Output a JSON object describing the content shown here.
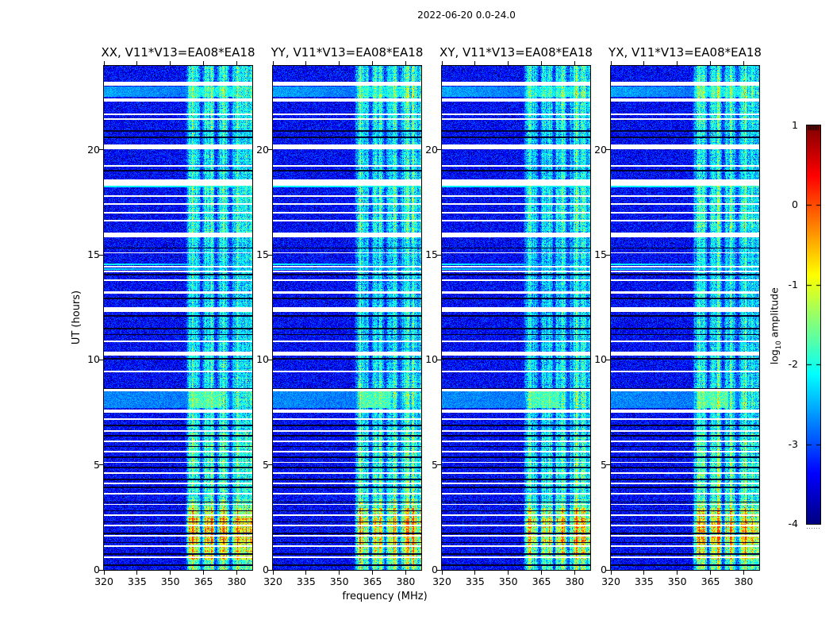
{
  "title": "2022-06-20 0.0-24.0",
  "chart_data": {
    "type": "heatmap",
    "description": "Four dynamic-spectrum (frequency vs time) panels of interferometric visibility amplitude with a shared jet colorbar; persistent RFI band near 357-387 MHz, bright emission event at hours 0-3.3, elevated broadband rows near hours 7.7-8.5 and 22.5-23.0, and many horizontal data-gap (white) and flagged (black) scan lines",
    "panels": [
      {
        "label": "XX, V11*V13=EA08*EA18",
        "seed": 11,
        "band_gain": 1.0,
        "event_gain": 1.0
      },
      {
        "label": "YY, V11*V13=EA08*EA18",
        "seed": 23,
        "band_gain": 1.02,
        "event_gain": 0.88
      },
      {
        "label": "XY, V11*V13=EA08*EA18",
        "seed": 37,
        "band_gain": 0.95,
        "event_gain": 0.9
      },
      {
        "label": "YX, V11*V13=EA08*EA18",
        "seed": 49,
        "band_gain": 1.0,
        "event_gain": 0.85
      }
    ],
    "xlabel": "frequency (MHz)",
    "ylabel": "UT (hours)",
    "x_ticks": [
      320,
      335,
      350,
      365,
      380
    ],
    "y_ticks": [
      0,
      5,
      10,
      15,
      20
    ],
    "x_range": [
      320,
      387
    ],
    "y_range": [
      0,
      24
    ],
    "colorbar": {
      "label": "log10 amplitude",
      "label_pre": "log",
      "label_sub": "10",
      "label_post": " amplitude",
      "ticks": [
        1,
        0,
        -1,
        -2,
        -3,
        -4
      ],
      "range": [
        -4,
        1
      ],
      "colormap": "jet"
    },
    "background_level": -3.35,
    "noise_amplitude": 0.42,
    "rfi_band": {
      "f_start": 356.8,
      "f_end": 387,
      "notches": [
        364.0,
        370.8,
        377.3
      ]
    },
    "time_segments": [
      [
        0.0,
        0.5,
        0.9,
        true
      ],
      [
        0.5,
        1.2,
        1.5,
        true
      ],
      [
        1.2,
        2.45,
        1.95,
        true
      ],
      [
        2.45,
        2.95,
        1.5,
        true
      ],
      [
        2.95,
        3.35,
        0.9,
        true
      ],
      [
        3.35,
        6.5,
        0.55,
        false
      ],
      [
        6.5,
        7.7,
        0.3,
        false
      ],
      [
        7.7,
        8.5,
        0.55,
        false
      ],
      [
        8.5,
        10.2,
        0.32,
        false
      ],
      [
        10.2,
        16.0,
        0.22,
        false
      ],
      [
        16.0,
        18.6,
        0.45,
        false
      ],
      [
        18.6,
        21.0,
        0.28,
        false
      ],
      [
        21.0,
        22.5,
        0.42,
        false
      ],
      [
        22.5,
        23.1,
        0.6,
        false
      ],
      [
        23.1,
        24.0,
        0.42,
        false
      ]
    ],
    "white_gaps": [
      [
        23.15,
        0.22
      ],
      [
        22.38,
        0.15
      ],
      [
        21.7,
        0.07
      ],
      [
        21.48,
        0.07
      ],
      [
        20.15,
        0.2
      ],
      [
        19.25,
        0.07
      ],
      [
        18.45,
        0.28
      ],
      [
        17.8,
        0.07
      ],
      [
        17.42,
        0.07
      ],
      [
        17.02,
        0.07
      ],
      [
        16.62,
        0.07
      ],
      [
        15.95,
        0.22
      ],
      [
        15.1,
        0.07
      ],
      [
        14.44,
        0.08
      ],
      [
        14.2,
        0.07
      ],
      [
        13.8,
        0.07
      ],
      [
        13.22,
        0.1
      ],
      [
        12.4,
        0.2
      ],
      [
        10.9,
        0.07
      ],
      [
        10.3,
        0.2
      ],
      [
        9.45,
        0.07
      ],
      [
        8.55,
        0.1
      ],
      [
        7.55,
        0.15
      ],
      [
        7.18,
        0.07
      ],
      [
        6.62,
        0.07
      ],
      [
        6.12,
        0.07
      ],
      [
        5.62,
        0.07
      ],
      [
        5.12,
        0.07
      ],
      [
        4.62,
        0.07
      ],
      [
        4.12,
        0.07
      ],
      [
        3.62,
        0.07
      ],
      [
        3.12,
        0.07
      ],
      [
        2.62,
        0.07
      ],
      [
        2.12,
        0.07
      ],
      [
        1.62,
        0.07
      ],
      [
        1.12,
        0.07
      ],
      [
        0.62,
        0.07
      ]
    ],
    "black_line_width": 0.06,
    "black_lines": [
      20.9,
      20.6,
      20.05,
      19.0,
      15.32,
      14.05,
      12.92,
      12.1,
      11.5,
      11.2,
      10.05,
      8.62,
      6.88,
      6.38,
      5.88,
      5.37,
      4.88,
      4.31,
      3.94,
      3.23,
      2.81,
      2.29,
      1.73,
      1.31,
      0.75,
      0.23
    ],
    "cyan_rows": [
      {
        "h": 18.25,
        "w": 0.09,
        "level": -2.15,
        "fade": 0.0
      },
      {
        "h": 14.55,
        "w": 0.11,
        "level": -2.1,
        "fade": 0.6
      },
      {
        "h": 14.32,
        "w": 0.09,
        "level": -2.3,
        "fade": 0.6
      }
    ],
    "elevated_bands": [
      {
        "h0": 7.72,
        "h1": 8.5,
        "level": -2.7,
        "fade": 0.15,
        "blob": {
          "f0": 359,
          "f1": 373,
          "level": -1.75
        }
      },
      {
        "h0": 22.52,
        "h1": 23.02,
        "level": -2.55,
        "fade": 0.45,
        "blob": {
          "f0": 358,
          "f1": 380,
          "level": -2.1
        }
      }
    ],
    "colors": {
      "figure_background": "#ffffff",
      "text": "#000000",
      "frame": "#000000"
    }
  }
}
